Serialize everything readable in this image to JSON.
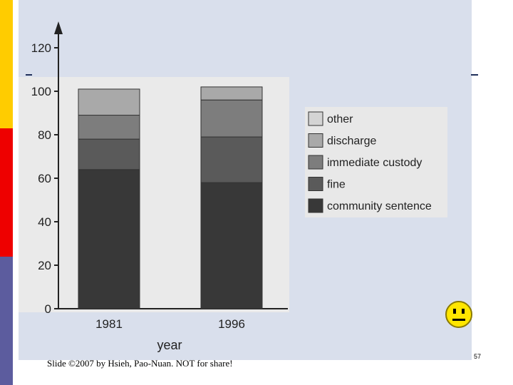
{
  "chart_data": {
    "type": "bar",
    "stacked": true,
    "categories": [
      "1981",
      "1996"
    ],
    "series": [
      {
        "name": "community sentence",
        "values": [
          64,
          58
        ],
        "color": "#383838"
      },
      {
        "name": "fine",
        "values": [
          14,
          21
        ],
        "color": "#5a5a5a"
      },
      {
        "name": "immediate custody",
        "values": [
          11,
          17
        ],
        "color": "#7d7d7d"
      },
      {
        "name": "discharge",
        "values": [
          12,
          6
        ],
        "color": "#a9a9a9"
      },
      {
        "name": "other",
        "values": [
          0,
          0
        ],
        "color": "#d4d4d4"
      }
    ],
    "legend_order": [
      "other",
      "discharge",
      "immediate custody",
      "fine",
      "community sentence"
    ],
    "legend_position": "right",
    "xlabel": "year",
    "ylabel": "",
    "ylim": [
      0,
      120
    ],
    "yticks": [
      "0",
      "20",
      "40",
      "60",
      "80",
      "100",
      "120"
    ]
  },
  "footer": {
    "credit": "Slide ©2007 by Hsieh, Pao-Nuan. NOT for share!",
    "slide_number": "57"
  },
  "icons": {
    "smiley": "smiley-face-icon"
  }
}
